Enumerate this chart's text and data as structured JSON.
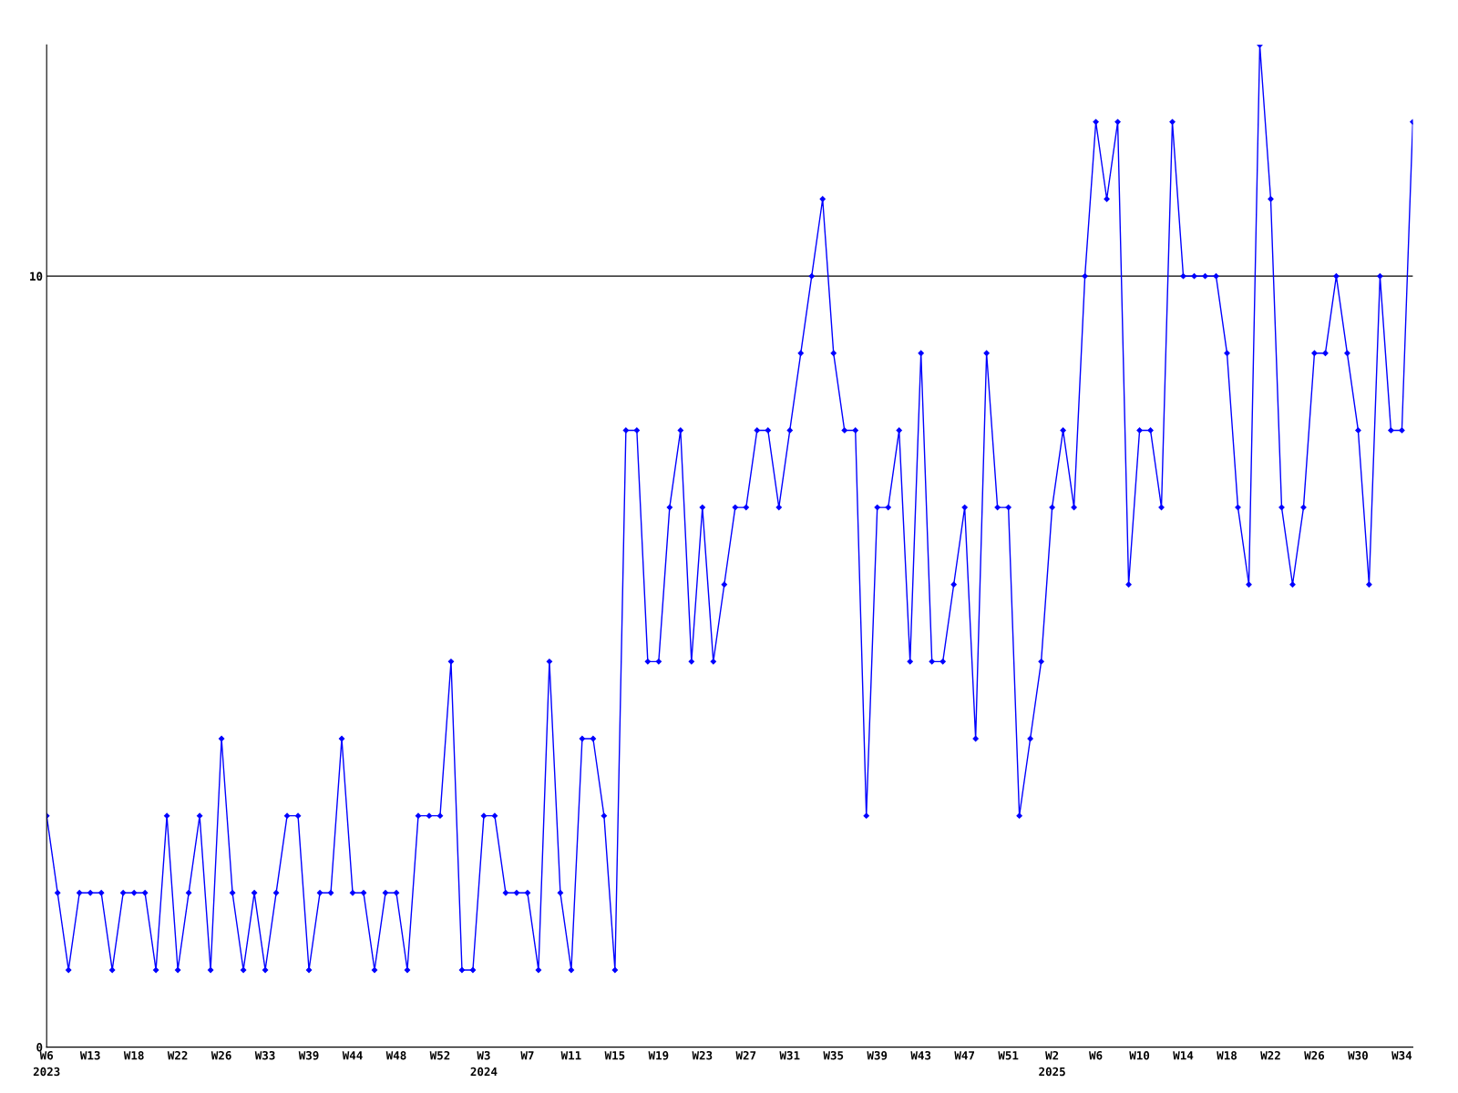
{
  "chart_data": {
    "type": "line",
    "categories": [
      "W6\n2023",
      null,
      null,
      null,
      "W13",
      null,
      null,
      null,
      "W18",
      null,
      null,
      null,
      "W22",
      null,
      null,
      null,
      "W26",
      null,
      null,
      null,
      "W33",
      null,
      null,
      null,
      "W39",
      null,
      null,
      null,
      "W44",
      null,
      null,
      null,
      "W48",
      null,
      null,
      null,
      "W52",
      null,
      null,
      null,
      "W3\n2024",
      null,
      null,
      null,
      "W7",
      null,
      null,
      null,
      "W11",
      null,
      null,
      null,
      "W15",
      null,
      null,
      null,
      "W19",
      null,
      null,
      null,
      "W23",
      null,
      null,
      null,
      "W27",
      null,
      null,
      null,
      "W31",
      null,
      null,
      null,
      "W35",
      null,
      null,
      null,
      "W39",
      null,
      null,
      null,
      "W43",
      null,
      null,
      null,
      "W47",
      null,
      null,
      null,
      "W51",
      null,
      null,
      null,
      "W2\n2025",
      null,
      null,
      null,
      "W6",
      null,
      null,
      null,
      "W10",
      null,
      null,
      null,
      "W14",
      null,
      null,
      null,
      "W18",
      null,
      null,
      null,
      "W22",
      null,
      null,
      null,
      "W26",
      null,
      null,
      null,
      "W30",
      null,
      null,
      null,
      "W34",
      null
    ],
    "series": [
      {
        "color": "#0000ff",
        "values": [
          3,
          2,
          1,
          2,
          2,
          2,
          1,
          2,
          2,
          2,
          1,
          3,
          1,
          2,
          3,
          1,
          4,
          2,
          1,
          2,
          1,
          2,
          3,
          3,
          1,
          2,
          2,
          4,
          2,
          2,
          1,
          2,
          2,
          1,
          3,
          3,
          3,
          5,
          1,
          1,
          3,
          3,
          2,
          2,
          2,
          1,
          5,
          2,
          1,
          4,
          4,
          3,
          1,
          8,
          8,
          5,
          5,
          7,
          8,
          5,
          7,
          5,
          6,
          7,
          7,
          8,
          8,
          7,
          8,
          9,
          10,
          11,
          9,
          8,
          8,
          3,
          7,
          7,
          8,
          5,
          9,
          5,
          5,
          6,
          7,
          4,
          9,
          7,
          7,
          3,
          4,
          5,
          7,
          8,
          7,
          10,
          12,
          11,
          12,
          6,
          8,
          8,
          7,
          12,
          10,
          10,
          10,
          10,
          9,
          7,
          6,
          13,
          11,
          7,
          6,
          7,
          9,
          9,
          10,
          9,
          8,
          6,
          10,
          8,
          8,
          12
        ]
      }
    ],
    "ylim": [
      0,
      13
    ],
    "yticks": [
      0,
      10
    ],
    "grid": "y",
    "marker": "diamond",
    "line_style": "solid",
    "legend": false
  }
}
